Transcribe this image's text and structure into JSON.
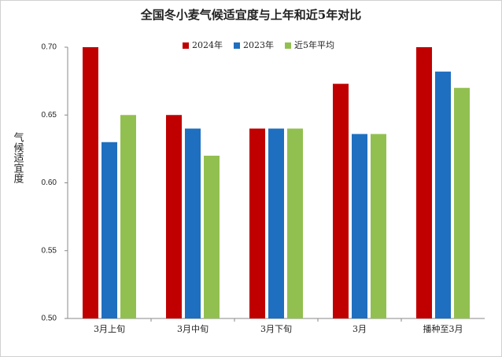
{
  "chart_data": {
    "type": "bar",
    "title": "全国冬小麦气候适宜度与上年和近5年对比",
    "y_label": "气候适宜度",
    "categories": [
      "3月上旬",
      "3月中旬",
      "3月下旬",
      "3月",
      "播种至3月"
    ],
    "series": [
      {
        "name": "2024年",
        "color": "#c00000",
        "values": [
          0.7,
          0.65,
          0.64,
          0.673,
          0.7
        ]
      },
      {
        "name": "2023年",
        "color": "#1f6fc0",
        "values": [
          0.63,
          0.64,
          0.64,
          0.636,
          0.682
        ]
      },
      {
        "name": "近5年平均",
        "color": "#92c050",
        "values": [
          0.65,
          0.62,
          0.64,
          0.636,
          0.67
        ]
      }
    ],
    "ylim": [
      0.5,
      0.7
    ],
    "yticks": [
      {
        "value": 0.5,
        "label": "0.50"
      },
      0.55,
      {
        "value": 0.6,
        "label": "0.60"
      },
      0.65,
      {
        "value": 0.7,
        "label": "0.70"
      }
    ],
    "legend": "top"
  }
}
